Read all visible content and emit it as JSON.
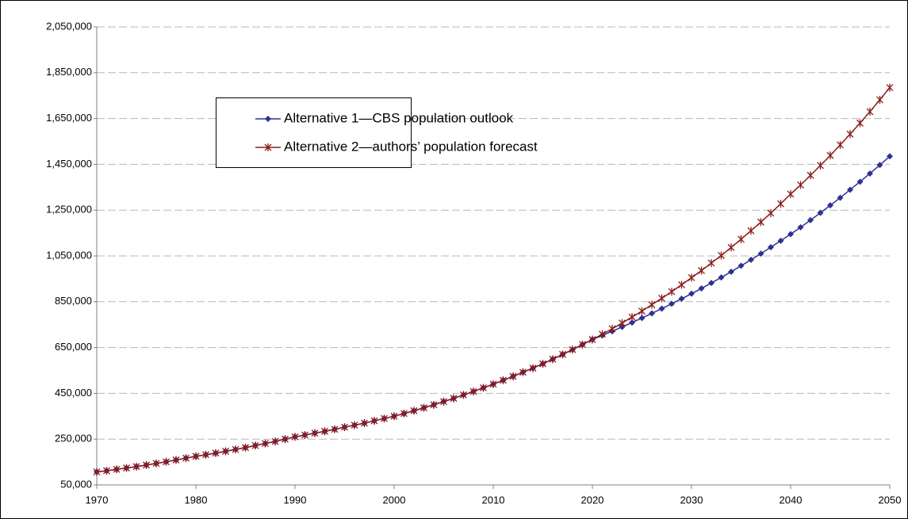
{
  "chart_data": {
    "type": "line",
    "x": [
      1970,
      1971,
      1972,
      1973,
      1974,
      1975,
      1976,
      1977,
      1978,
      1979,
      1980,
      1981,
      1982,
      1983,
      1984,
      1985,
      1986,
      1987,
      1988,
      1989,
      1990,
      1991,
      1992,
      1993,
      1994,
      1995,
      1996,
      1997,
      1998,
      1999,
      2000,
      2001,
      2002,
      2003,
      2004,
      2005,
      2006,
      2007,
      2008,
      2009,
      2010,
      2011,
      2012,
      2013,
      2014,
      2015,
      2016,
      2017,
      2018,
      2019,
      2020,
      2021,
      2022,
      2023,
      2024,
      2025,
      2026,
      2027,
      2028,
      2029,
      2030,
      2031,
      2032,
      2033,
      2034,
      2035,
      2036,
      2037,
      2038,
      2039,
      2040,
      2041,
      2042,
      2043,
      2044,
      2045,
      2046,
      2047,
      2048,
      2049,
      2050
    ],
    "series": [
      {
        "name": "Alternative 1—CBS population outlook",
        "color": "#2e3192",
        "marker": "diamond",
        "values": [
          107000,
          112000,
          118000,
          124000,
          130000,
          137000,
          144000,
          151000,
          159000,
          167000,
          175000,
          182000,
          189000,
          197000,
          205000,
          213000,
          222000,
          231000,
          240000,
          250000,
          260000,
          268000,
          276000,
          284000,
          293000,
          302000,
          311000,
          320000,
          330000,
          340000,
          350000,
          362000,
          374000,
          387000,
          400000,
          414000,
          428000,
          443000,
          458000,
          474000,
          490000,
          507000,
          524000,
          542000,
          560000,
          579000,
          599000,
          620000,
          641000,
          663000,
          685000,
          703000,
          721000,
          740000,
          759000,
          779000,
          799000,
          820000,
          841000,
          863000,
          885000,
          908000,
          932000,
          956000,
          981000,
          1007000,
          1033000,
          1060000,
          1088000,
          1116000,
          1145000,
          1175000,
          1206000,
          1238000,
          1271000,
          1304000,
          1339000,
          1374000,
          1410000,
          1447000,
          1485000
        ]
      },
      {
        "name": "Alternative 2—authors’ population forecast",
        "color": "#8b1a1a",
        "marker": "asterisk",
        "values": [
          107000,
          112000,
          118000,
          124000,
          130000,
          137000,
          144000,
          151000,
          159000,
          167000,
          175000,
          182000,
          189000,
          197000,
          205000,
          213000,
          222000,
          231000,
          240000,
          250000,
          260000,
          268000,
          276000,
          284000,
          293000,
          302000,
          311000,
          320000,
          330000,
          340000,
          350000,
          362000,
          374000,
          387000,
          400000,
          414000,
          428000,
          443000,
          458000,
          474000,
          490000,
          507000,
          524000,
          542000,
          560000,
          579000,
          599000,
          620000,
          641000,
          663000,
          685000,
          708000,
          732000,
          757000,
          783000,
          809000,
          837000,
          865000,
          894000,
          924000,
          955000,
          986000,
          1019000,
          1052000,
          1087000,
          1123000,
          1160000,
          1198000,
          1237000,
          1278000,
          1320000,
          1360000,
          1402000,
          1445000,
          1489000,
          1535000,
          1582000,
          1630000,
          1680000,
          1732000,
          1785000
        ]
      }
    ],
    "xlim": [
      1970,
      2050
    ],
    "xticks": [
      1970,
      1980,
      1990,
      2000,
      2010,
      2020,
      2030,
      2040,
      2050
    ],
    "ylim": [
      50000,
      2050000
    ],
    "yticks": [
      {
        "value": 50000,
        "label": "50,000"
      },
      {
        "value": 250000,
        "label": "250,000"
      },
      {
        "value": 450000,
        "label": "450,000"
      },
      {
        "value": 650000,
        "label": "650,000"
      },
      {
        "value": 850000,
        "label": "850,000"
      },
      {
        "value": 1050000,
        "label": "1,050,000"
      },
      {
        "value": 1250000,
        "label": "1,250,000"
      },
      {
        "value": 1450000,
        "label": "1,450,000"
      },
      {
        "value": 1650000,
        "label": "1,650,000"
      },
      {
        "value": 1850000,
        "label": "1,850,000"
      },
      {
        "value": 2050000,
        "label": "2,050,000"
      }
    ],
    "grid": true
  }
}
